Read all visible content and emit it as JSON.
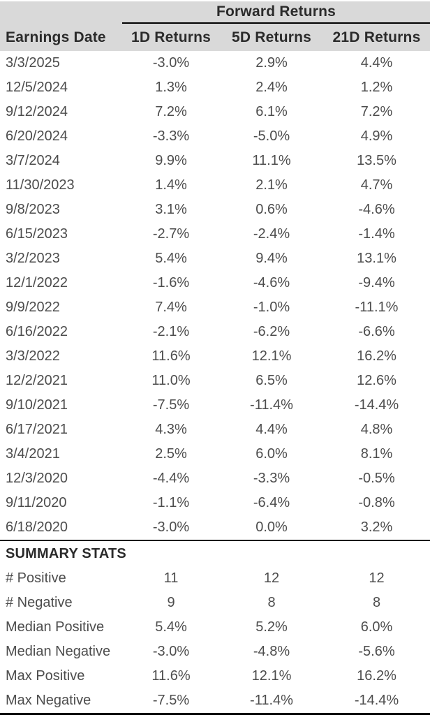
{
  "chart_data": {
    "type": "table",
    "title": "Forward Returns",
    "columns": [
      "Earnings Date",
      "1D Returns",
      "5D Returns",
      "21D Returns"
    ],
    "rows": [
      [
        "3/3/2025",
        "-3.0%",
        "2.9%",
        "4.4%"
      ],
      [
        "12/5/2024",
        "1.3%",
        "2.4%",
        "1.2%"
      ],
      [
        "9/12/2024",
        "7.2%",
        "6.1%",
        "7.2%"
      ],
      [
        "6/20/2024",
        "-3.3%",
        "-5.0%",
        "4.9%"
      ],
      [
        "3/7/2024",
        "9.9%",
        "11.1%",
        "13.5%"
      ],
      [
        "11/30/2023",
        "1.4%",
        "2.1%",
        "4.7%"
      ],
      [
        "9/8/2023",
        "3.1%",
        "0.6%",
        "-4.6%"
      ],
      [
        "6/15/2023",
        "-2.7%",
        "-2.4%",
        "-1.4%"
      ],
      [
        "3/2/2023",
        "5.4%",
        "9.4%",
        "13.1%"
      ],
      [
        "12/1/2022",
        "-1.6%",
        "-4.6%",
        "-9.4%"
      ],
      [
        "9/9/2022",
        "7.4%",
        "-1.0%",
        "-11.1%"
      ],
      [
        "6/16/2022",
        "-2.1%",
        "-6.2%",
        "-6.6%"
      ],
      [
        "3/3/2022",
        "11.6%",
        "12.1%",
        "16.2%"
      ],
      [
        "12/2/2021",
        "11.0%",
        "6.5%",
        "12.6%"
      ],
      [
        "9/10/2021",
        "-7.5%",
        "-11.4%",
        "-14.4%"
      ],
      [
        "6/17/2021",
        "4.3%",
        "4.4%",
        "4.8%"
      ],
      [
        "3/4/2021",
        "2.5%",
        "6.0%",
        "8.1%"
      ],
      [
        "12/3/2020",
        "-4.4%",
        "-3.3%",
        "-0.5%"
      ],
      [
        "9/11/2020",
        "-1.1%",
        "-6.4%",
        "-0.8%"
      ],
      [
        "6/18/2020",
        "-3.0%",
        "0.0%",
        "3.2%"
      ]
    ],
    "summary": {
      "title": "SUMMARY STATS",
      "rows": [
        [
          "# Positive",
          "11",
          "12",
          "12"
        ],
        [
          "# Negative",
          "9",
          "8",
          "8"
        ],
        [
          "Median Positive",
          "5.4%",
          "5.2%",
          "6.0%"
        ],
        [
          "Median Negative",
          "-3.0%",
          "-4.8%",
          "-5.6%"
        ],
        [
          "Max Positive",
          "11.6%",
          "12.1%",
          "16.2%"
        ],
        [
          "Max Negative",
          "-7.5%",
          "-11.4%",
          "-14.4%"
        ]
      ]
    },
    "layout": {
      "header_bg": "#d9d9d9",
      "header_text_color": "#2b2b2b",
      "body_text_color": "#4d4d4d",
      "line_color": "#000000",
      "background": "#ffffff"
    }
  }
}
